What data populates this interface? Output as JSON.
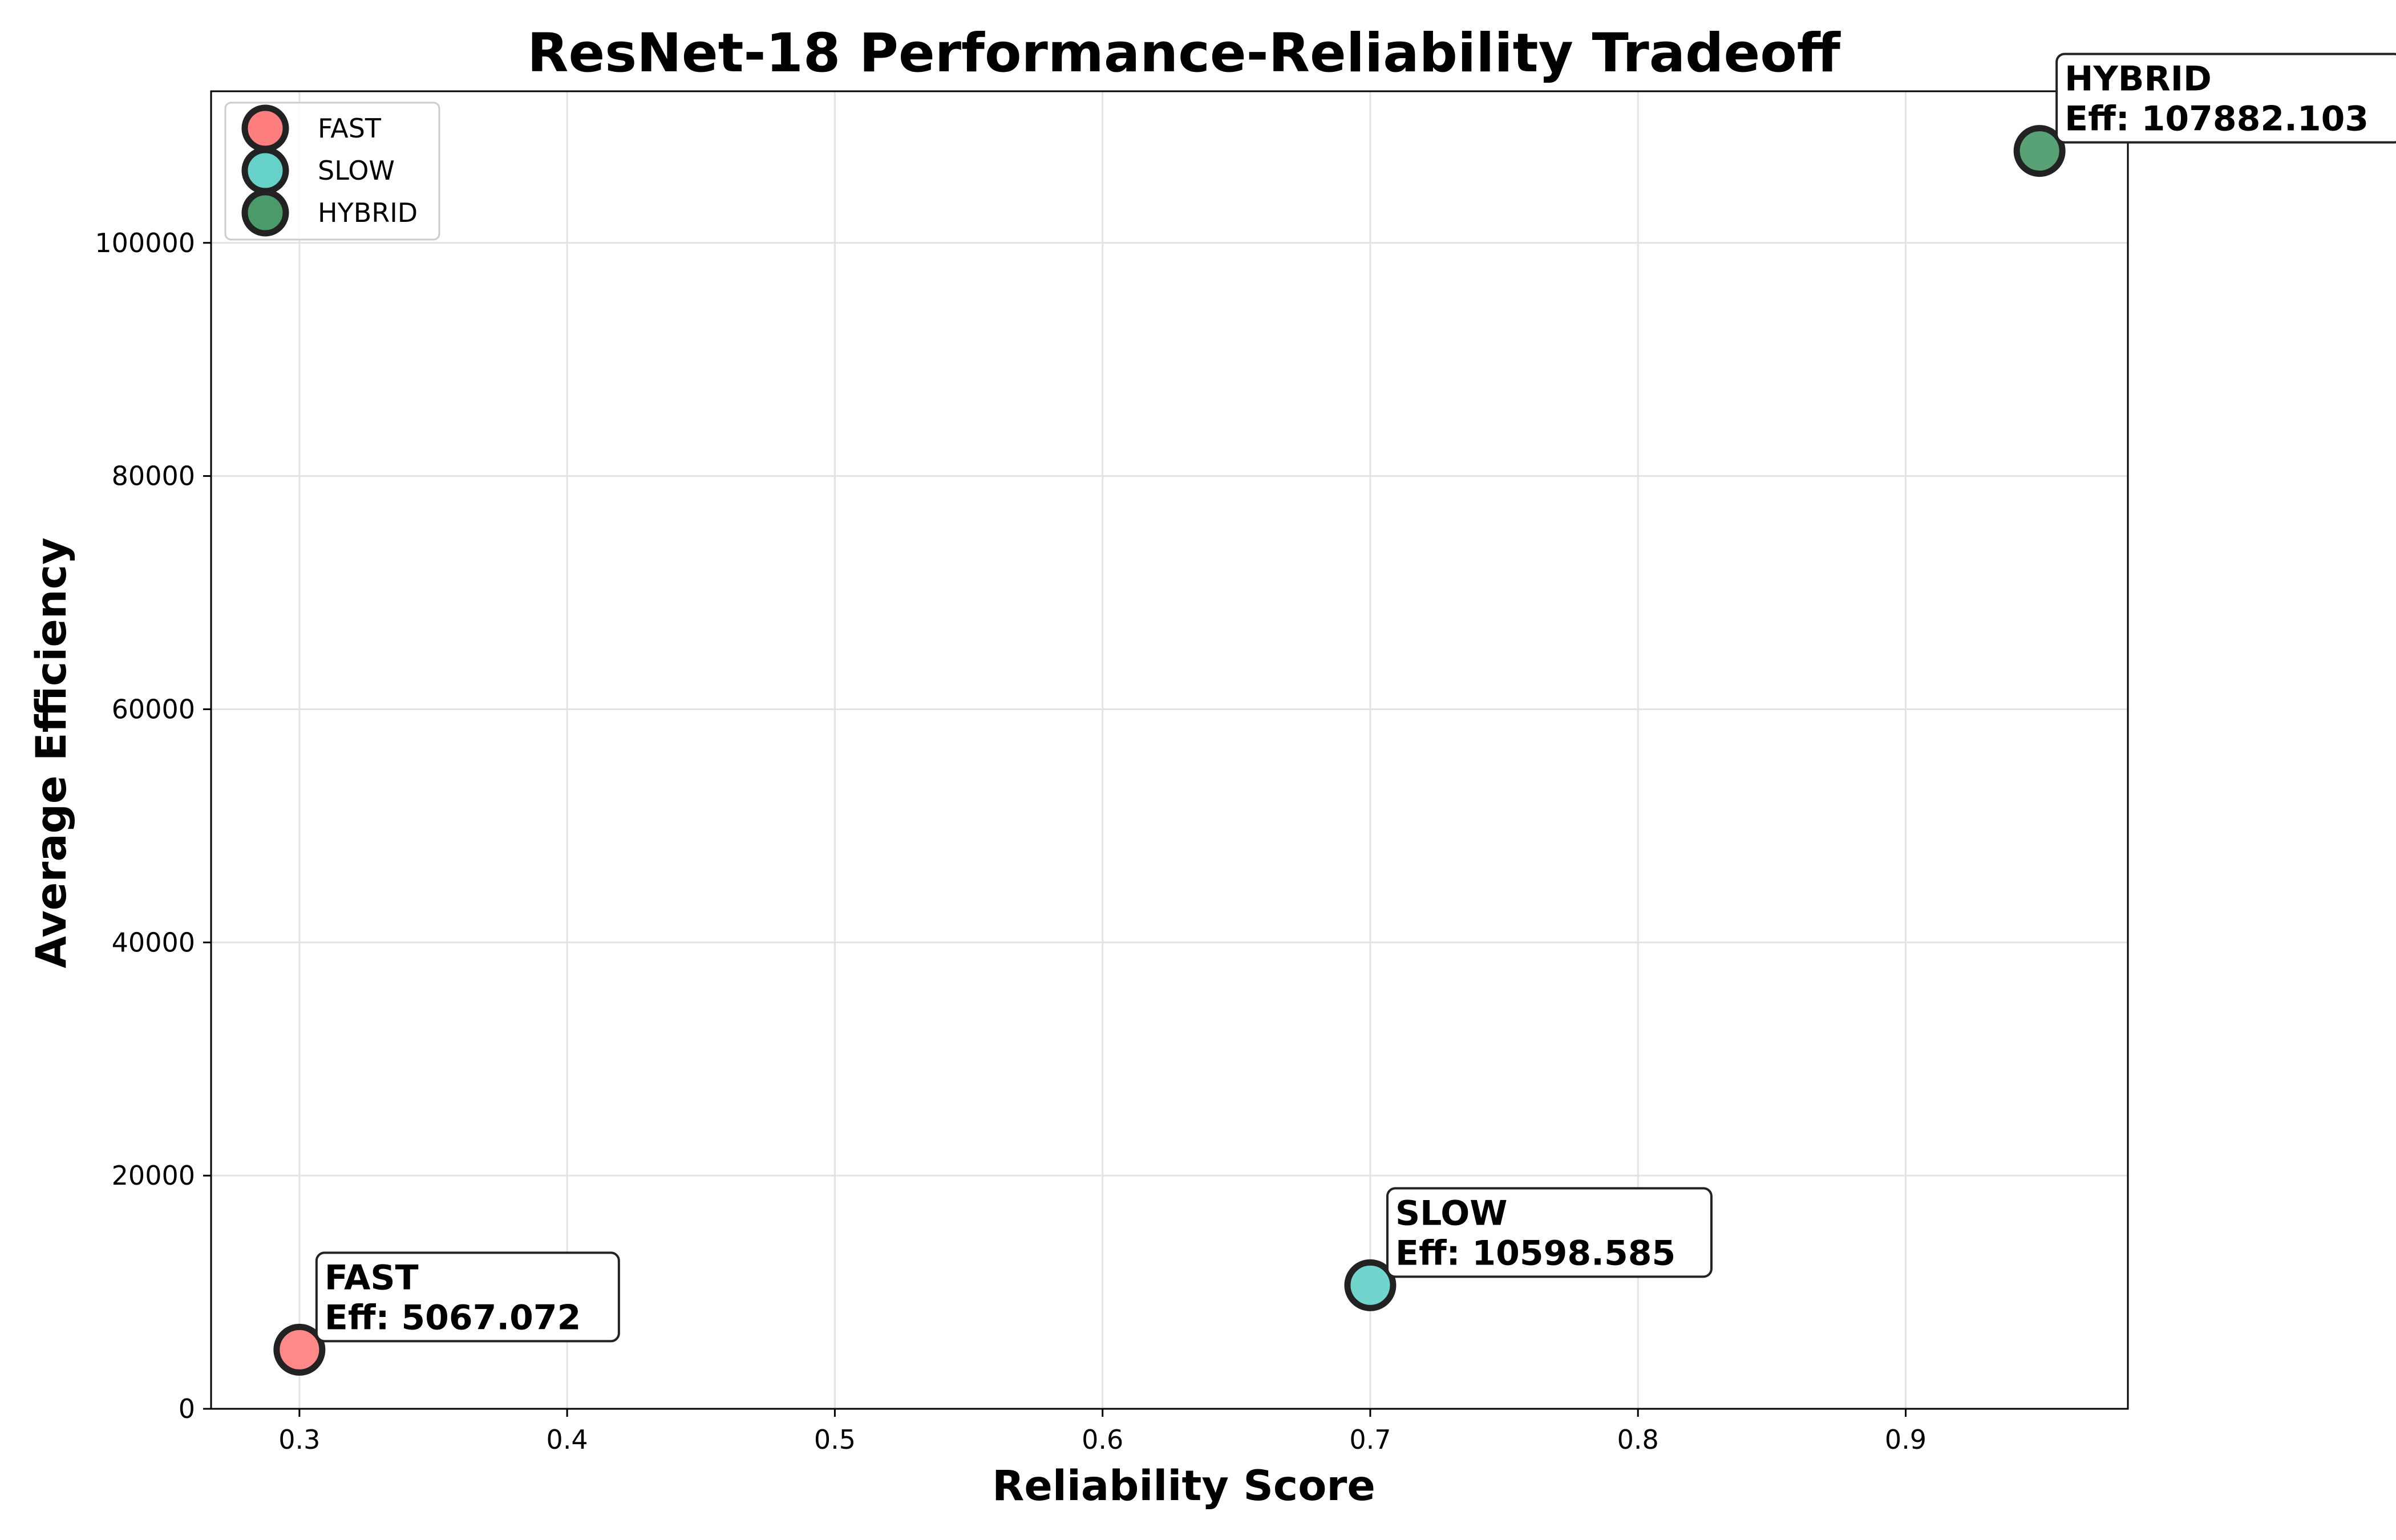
{
  "chart_data": {
    "type": "scatter",
    "title": "ResNet-18 Performance-Reliability Tradeoff",
    "xlabel": "Reliability Score",
    "ylabel": "Average Efficiency",
    "xlim": [
      0.267,
      0.983
    ],
    "ylim": [
      0,
      113000
    ],
    "xticks": [
      0.3,
      0.4,
      0.5,
      0.6,
      0.7,
      0.8,
      0.9
    ],
    "xtick_labels": [
      "0.3",
      "0.4",
      "0.5",
      "0.6",
      "0.7",
      "0.8",
      "0.9"
    ],
    "yticks": [
      0,
      20000,
      40000,
      60000,
      80000,
      100000
    ],
    "ytick_labels": [
      "0",
      "20000",
      "40000",
      "60000",
      "80000",
      "100000"
    ],
    "grid": true,
    "legend_position": "top-left",
    "series": [
      {
        "name": "FAST",
        "color": "#ff7f7f",
        "x": 0.3,
        "y": 5067.072,
        "annotation": [
          "FAST",
          "Eff: 5067.072"
        ]
      },
      {
        "name": "SLOW",
        "color": "#66d1c9",
        "x": 0.7,
        "y": 10598.585,
        "annotation": [
          "SLOW",
          "Eff: 10598.585"
        ]
      },
      {
        "name": "HYBRID",
        "color": "#4a9a6a",
        "x": 0.95,
        "y": 107882.103,
        "annotation": [
          "HYBRID",
          "Eff: 107882.103"
        ]
      }
    ]
  }
}
